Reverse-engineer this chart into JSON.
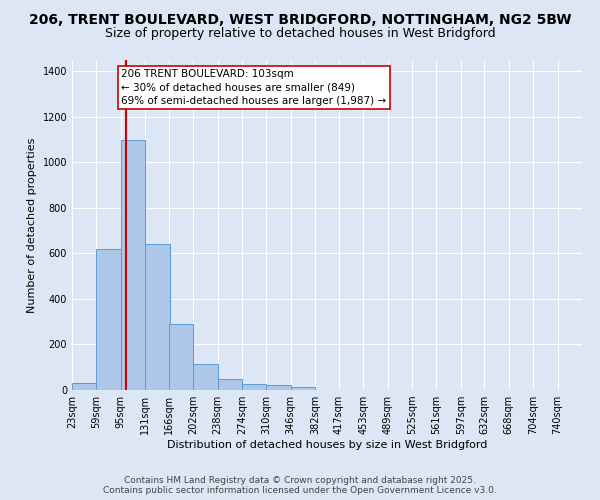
{
  "title_line1": "206, TRENT BOULEVARD, WEST BRIDGFORD, NOTTINGHAM, NG2 5BW",
  "title_line2": "Size of property relative to detached houses in West Bridgford",
  "xlabel": "Distribution of detached houses by size in West Bridgford",
  "ylabel": "Number of detached properties",
  "bin_labels": [
    "23sqm",
    "59sqm",
    "95sqm",
    "131sqm",
    "166sqm",
    "202sqm",
    "238sqm",
    "274sqm",
    "310sqm",
    "346sqm",
    "382sqm",
    "417sqm",
    "453sqm",
    "489sqm",
    "525sqm",
    "561sqm",
    "597sqm",
    "632sqm",
    "668sqm",
    "704sqm",
    "740sqm"
  ],
  "bin_edges": [
    23,
    59,
    95,
    131,
    166,
    202,
    238,
    274,
    310,
    346,
    382,
    417,
    453,
    489,
    525,
    561,
    597,
    632,
    668,
    704,
    740
  ],
  "bar_heights": [
    30,
    620,
    1100,
    640,
    290,
    115,
    50,
    25,
    20,
    15,
    0,
    0,
    0,
    0,
    0,
    0,
    0,
    0,
    0,
    0
  ],
  "bar_color": "#aec6e8",
  "bar_edge_color": "#5b9bd5",
  "fig_bg_color": "#dce6f5",
  "ax_bg_color": "#dce6f5",
  "grid_color": "#ffffff",
  "vline_x": 103,
  "vline_color": "#cc0000",
  "annotation_text": "206 TRENT BOULEVARD: 103sqm\n← 30% of detached houses are smaller (849)\n69% of semi-detached houses are larger (1,987) →",
  "annotation_box_color": "#ffffff",
  "annotation_box_edge_color": "#cc0000",
  "ylim": [
    0,
    1450
  ],
  "yticks": [
    0,
    200,
    400,
    600,
    800,
    1000,
    1200,
    1400
  ],
  "footer_line1": "Contains HM Land Registry data © Crown copyright and database right 2025.",
  "footer_line2": "Contains public sector information licensed under the Open Government Licence v3.0.",
  "title_fontsize": 10,
  "subtitle_fontsize": 9,
  "axis_label_fontsize": 8,
  "tick_fontsize": 7,
  "annotation_fontsize": 7.5,
  "footer_fontsize": 6.5
}
